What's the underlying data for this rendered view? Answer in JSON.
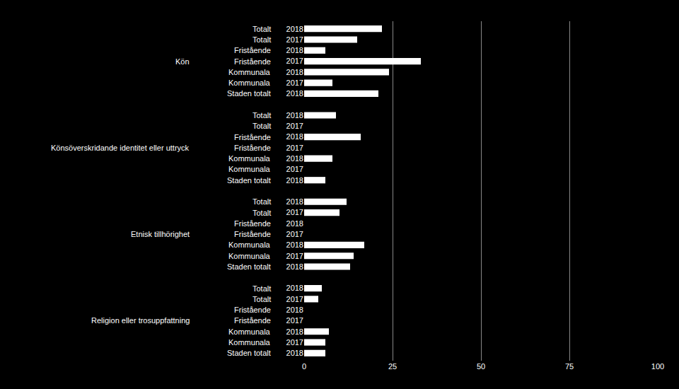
{
  "chart_data": {
    "type": "bar",
    "orientation": "horizontal",
    "color": "#ffffff",
    "grid": true,
    "xlim": [
      0,
      100
    ],
    "xticks": [
      0,
      25,
      50,
      75,
      100
    ],
    "groups": [
      {
        "label": "Kön",
        "categories": [
          "Totalt",
          "Totalt",
          "Fristående",
          "Fristående",
          "Kommunala",
          "Kommunala",
          "Staden totalt"
        ],
        "years": [
          "2018",
          "2017",
          "2018",
          "2017",
          "2018",
          "2017",
          "2018"
        ],
        "values": [
          22,
          15,
          6,
          33,
          24,
          8,
          21
        ]
      },
      {
        "label": "Könsöverskridande identitet eller uttryck",
        "categories": [
          "Totalt",
          "Totalt",
          "Fristående",
          "Fristående",
          "Kommunala",
          "Kommunala",
          "Staden totalt"
        ],
        "years": [
          "2018",
          "2017",
          "2018",
          "2017",
          "2018",
          "2017",
          "2018"
        ],
        "values": [
          9,
          0,
          16,
          0,
          8,
          0,
          6
        ]
      },
      {
        "label": "Etnisk tillhörighet",
        "categories": [
          "Totalt",
          "Totalt",
          "Fristående",
          "Fristående",
          "Kommunala",
          "Kommunala",
          "Staden totalt"
        ],
        "years": [
          "2018",
          "2017",
          "2018",
          "2017",
          "2018",
          "2017",
          "2018"
        ],
        "values": [
          12,
          10,
          0,
          0,
          17,
          14,
          13
        ]
      },
      {
        "label": "Religion eller trosuppfattning",
        "categories": [
          "Totalt",
          "Totalt",
          "Fristående",
          "Fristående",
          "Kommunala",
          "Kommunala",
          "Staden totalt"
        ],
        "years": [
          "2018",
          "2017",
          "2018",
          "2017",
          "2018",
          "2017",
          "2018"
        ],
        "values": [
          5,
          4,
          0,
          0,
          7,
          6,
          6
        ]
      }
    ]
  }
}
